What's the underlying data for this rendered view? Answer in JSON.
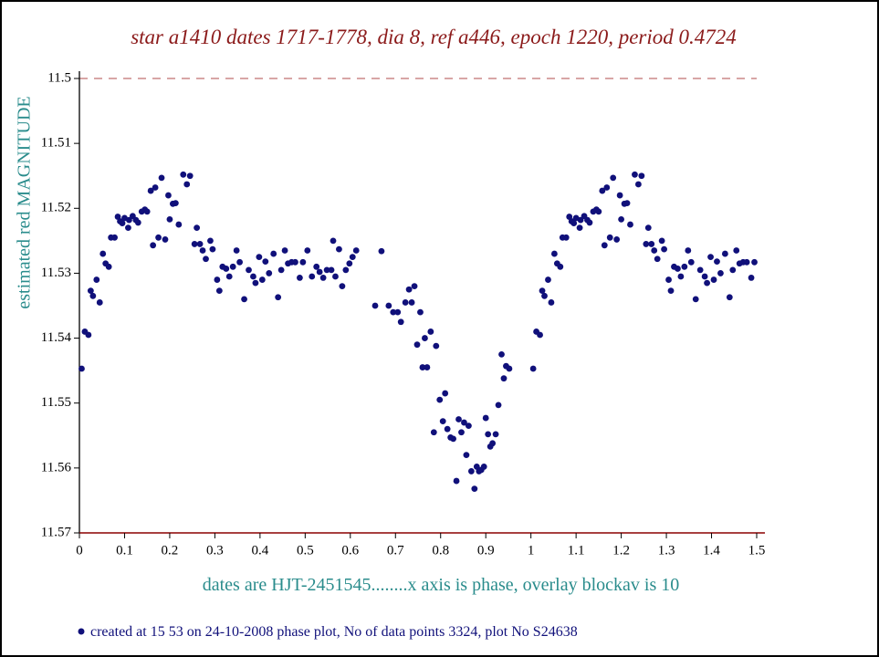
{
  "chart_data": {
    "type": "scatter",
    "title": "star a1410 dates 1717-1778, dia 8, ref a446, epoch 1220, period 0.4724",
    "y_label": "estimated red MAGNITUDE",
    "x_label": "dates are HJT-2451545........x axis is phase, overlay blockav is 10",
    "footnote": "created at 15 53 on 24-10-2008 phase plot, No of data points 3324,  plot No S24638",
    "xlim": [
      0,
      1.5
    ],
    "xticks": [
      0,
      0.1,
      0.2,
      0.3,
      0.4,
      0.5,
      0.6,
      0.7,
      0.8,
      0.9,
      1,
      1.1,
      1.2,
      1.3,
      1.4,
      1.5
    ],
    "ylim": [
      11.5,
      11.57
    ],
    "y_inverted": true,
    "yticks": [
      11.5,
      11.51,
      11.52,
      11.53,
      11.54,
      11.55,
      11.56,
      11.57
    ],
    "color": "#10107a",
    "x": [
      0.005,
      0.012,
      0.02,
      0.025,
      0.03,
      0.038,
      0.045,
      0.052,
      0.058,
      0.065,
      0.07,
      0.078,
      0.085,
      0.09,
      0.095,
      0.1,
      0.108,
      0.11,
      0.118,
      0.125,
      0.13,
      0.138,
      0.145,
      0.15,
      0.158,
      0.163,
      0.168,
      0.175,
      0.182,
      0.19,
      0.197,
      0.2,
      0.207,
      0.213,
      0.22,
      0.23,
      0.238,
      0.245,
      0.255,
      0.26,
      0.267,
      0.273,
      0.28,
      0.29,
      0.295,
      0.305,
      0.31,
      0.317,
      0.325,
      0.332,
      0.34,
      0.348,
      0.355,
      0.365,
      0.375,
      0.385,
      0.39,
      0.398,
      0.405,
      0.412,
      0.42,
      0.43,
      0.44,
      0.447,
      0.455,
      0.462,
      0.47,
      0.478,
      0.488,
      0.495,
      0.505,
      0.515,
      0.525,
      0.532,
      0.54,
      0.548,
      0.558,
      0.562,
      0.567,
      0.575,
      0.582,
      0.59,
      0.598,
      0.605,
      0.613,
      0.655,
      0.669,
      0.685,
      0.695,
      0.705,
      0.712,
      0.722,
      0.73,
      0.736,
      0.742,
      0.748,
      0.755,
      0.76,
      0.765,
      0.77,
      0.778,
      0.785,
      0.79,
      0.798,
      0.805,
      0.81,
      0.815,
      0.822,
      0.828,
      0.835,
      0.84,
      0.846,
      0.852,
      0.857,
      0.862,
      0.868,
      0.875,
      0.88,
      0.885,
      0.89,
      0.896,
      0.9,
      0.905,
      0.91,
      0.915,
      0.922,
      0.928,
      0.935,
      0.94,
      0.945,
      0.952,
      1.005,
      1.012,
      1.02,
      1.025,
      1.03,
      1.038,
      1.045,
      1.052,
      1.058,
      1.065,
      1.07,
      1.078,
      1.085,
      1.09,
      1.095,
      1.1,
      1.108,
      1.11,
      1.118,
      1.125,
      1.13,
      1.138,
      1.145,
      1.15,
      1.158,
      1.163,
      1.168,
      1.175,
      1.182,
      1.19,
      1.197,
      1.2,
      1.207,
      1.213,
      1.22,
      1.23,
      1.238,
      1.245,
      1.255,
      1.26,
      1.267,
      1.273,
      1.28,
      1.29,
      1.295,
      1.305,
      1.31,
      1.317,
      1.325,
      1.332,
      1.34,
      1.348,
      1.355,
      1.365,
      1.375,
      1.385,
      1.39,
      1.398,
      1.405,
      1.412,
      1.42,
      1.43,
      1.44,
      1.447,
      1.455,
      1.462,
      1.47,
      1.478,
      1.488,
      1.495
    ],
    "values": [
      11.5447,
      11.539,
      11.5395,
      11.5327,
      11.5335,
      11.531,
      11.5345,
      11.527,
      11.5285,
      11.529,
      11.5245,
      11.5245,
      11.5213,
      11.522,
      11.5223,
      11.5215,
      11.523,
      11.5218,
      11.5212,
      11.5218,
      11.5222,
      11.5205,
      11.5202,
      11.5205,
      11.5173,
      11.5257,
      11.5168,
      11.5245,
      11.5153,
      11.5248,
      11.518,
      11.5217,
      11.5193,
      11.5192,
      11.5225,
      11.5148,
      11.5163,
      11.515,
      11.5255,
      11.523,
      11.5255,
      11.5265,
      11.5278,
      11.525,
      11.5263,
      11.531,
      11.5327,
      11.529,
      11.5293,
      11.5305,
      11.529,
      11.5265,
      11.5283,
      11.534,
      11.5295,
      11.5305,
      11.5315,
      11.5275,
      11.531,
      11.5282,
      11.53,
      11.527,
      11.5337,
      11.5295,
      11.5265,
      11.5285,
      11.5283,
      11.5283,
      11.5307,
      11.5283,
      11.5265,
      11.5305,
      11.529,
      11.5298,
      11.5307,
      11.5295,
      11.5295,
      11.525,
      11.5305,
      11.5263,
      11.532,
      11.5295,
      11.5285,
      11.5275,
      11.5265,
      11.535,
      11.5266,
      11.535,
      11.536,
      11.536,
      11.5375,
      11.5345,
      11.5325,
      11.5345,
      11.532,
      11.541,
      11.536,
      11.5445,
      11.54,
      11.5445,
      11.539,
      11.5545,
      11.5412,
      11.5495,
      11.5528,
      11.5485,
      11.554,
      11.5553,
      11.5555,
      11.562,
      11.5525,
      11.5545,
      11.553,
      11.558,
      11.5535,
      11.5605,
      11.5632,
      11.5598,
      11.5605,
      11.5603,
      11.5598,
      11.5523,
      11.5548,
      11.5567,
      11.5562,
      11.5548,
      11.5503,
      11.5425,
      11.5462,
      11.5443,
      11.5447,
      11.5447,
      11.539,
      11.5395,
      11.5327,
      11.5335,
      11.531,
      11.5345,
      11.527,
      11.5285,
      11.529,
      11.5245,
      11.5245,
      11.5213,
      11.522,
      11.5223,
      11.5215,
      11.523,
      11.5218,
      11.5212,
      11.5218,
      11.5222,
      11.5205,
      11.5202,
      11.5205,
      11.5173,
      11.5257,
      11.5168,
      11.5245,
      11.5153,
      11.5248,
      11.518,
      11.5217,
      11.5193,
      11.5192,
      11.5225,
      11.5148,
      11.5163,
      11.515,
      11.5255,
      11.523,
      11.5255,
      11.5265,
      11.5278,
      11.525,
      11.5263,
      11.531,
      11.5327,
      11.529,
      11.5293,
      11.5305,
      11.529,
      11.5265,
      11.5283,
      11.534,
      11.5295,
      11.5305,
      11.5315,
      11.5275,
      11.531,
      11.5282,
      11.53,
      11.527,
      11.5337,
      11.5295,
      11.5265,
      11.5285,
      11.5283,
      11.5283,
      11.5307,
      11.5283
    ]
  }
}
